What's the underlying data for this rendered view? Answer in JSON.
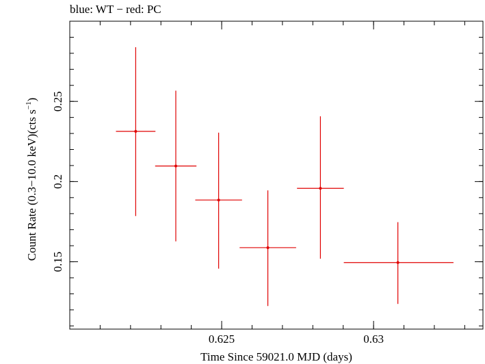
{
  "chart_data": {
    "type": "scatter",
    "title": "blue: WT − red: PC",
    "xlabel": "Time Since 59021.0 MJD (days)",
    "ylabel_main": "Count Rate (0.3−10.0 keV)(cts s",
    "ylabel_sup": "−1",
    "ylabel_close": ")",
    "xlim": [
      0.62,
      0.6336
    ],
    "ylim": [
      0.108,
      0.3
    ],
    "x_ticks": [
      0.625,
      0.63
    ],
    "x_tick_labels": [
      "0.625",
      "0.63"
    ],
    "y_ticks": [
      0.15,
      0.2,
      0.25
    ],
    "y_tick_labels": [
      "0.15",
      "0.2",
      "0.25"
    ],
    "series": [
      {
        "name": "PC",
        "color": "#e00000",
        "points": [
          {
            "x": 0.62217,
            "y": 0.2313,
            "xerr_lo": 0.00065,
            "xerr_hi": 0.00065,
            "y_lo": 0.1785,
            "y_hi": 0.2838
          },
          {
            "x": 0.62349,
            "y": 0.2097,
            "xerr_lo": 0.00068,
            "xerr_hi": 0.00068,
            "y_lo": 0.1627,
            "y_hi": 0.2567
          },
          {
            "x": 0.6249,
            "y": 0.1885,
            "xerr_lo": 0.00077,
            "xerr_hi": 0.00077,
            "y_lo": 0.1457,
            "y_hi": 0.2305
          },
          {
            "x": 0.62652,
            "y": 0.1588,
            "xerr_lo": 0.00093,
            "xerr_hi": 0.00093,
            "y_lo": 0.1224,
            "y_hi": 0.1945
          },
          {
            "x": 0.62825,
            "y": 0.1958,
            "xerr_lo": 0.00077,
            "xerr_hi": 0.00077,
            "y_lo": 0.1519,
            "y_hi": 0.2407
          },
          {
            "x": 0.6308,
            "y": 0.1495,
            "xerr_lo": 0.00178,
            "xerr_hi": 0.00183,
            "y_lo": 0.1237,
            "y_hi": 0.1747
          }
        ]
      }
    ]
  }
}
